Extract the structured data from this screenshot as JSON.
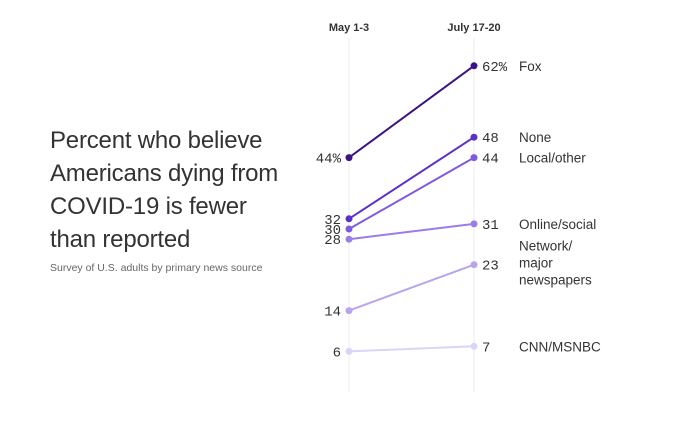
{
  "title": "Percent who believe Americans dying from COVID-19 is fewer than reported",
  "subtitle": "Survey of U.S. adults by primary news source",
  "chart_data": {
    "type": "line",
    "x": [
      "May 1-3",
      "July 17-20"
    ],
    "y_unit": "%",
    "series": [
      {
        "name": "Fox",
        "values": [
          44,
          62
        ],
        "color": "#3a1486",
        "start_label": "44%",
        "end_label": "62%"
      },
      {
        "name": "None",
        "values": [
          32,
          48
        ],
        "color": "#5b2fc9",
        "start_label": "32",
        "end_label": "48"
      },
      {
        "name": "Local/other",
        "values": [
          30,
          44
        ],
        "color": "#7e5ae0",
        "start_label": "30",
        "end_label": "44"
      },
      {
        "name": "Online/social",
        "values": [
          28,
          31
        ],
        "color": "#9a7de6",
        "start_label": "28",
        "end_label": "31"
      },
      {
        "name": "Network/ major newspapers",
        "values": [
          14,
          23
        ],
        "color": "#b9a4ee",
        "start_label": "14",
        "end_label": "23",
        "label_lines": [
          "Network/",
          "major",
          "newspapers"
        ]
      },
      {
        "name": "CNN/MSNBC",
        "values": [
          6,
          7
        ],
        "color": "#ddd3f7",
        "start_label": "6",
        "end_label": "7"
      }
    ],
    "grid": false,
    "legend": "direct labels at right"
  }
}
